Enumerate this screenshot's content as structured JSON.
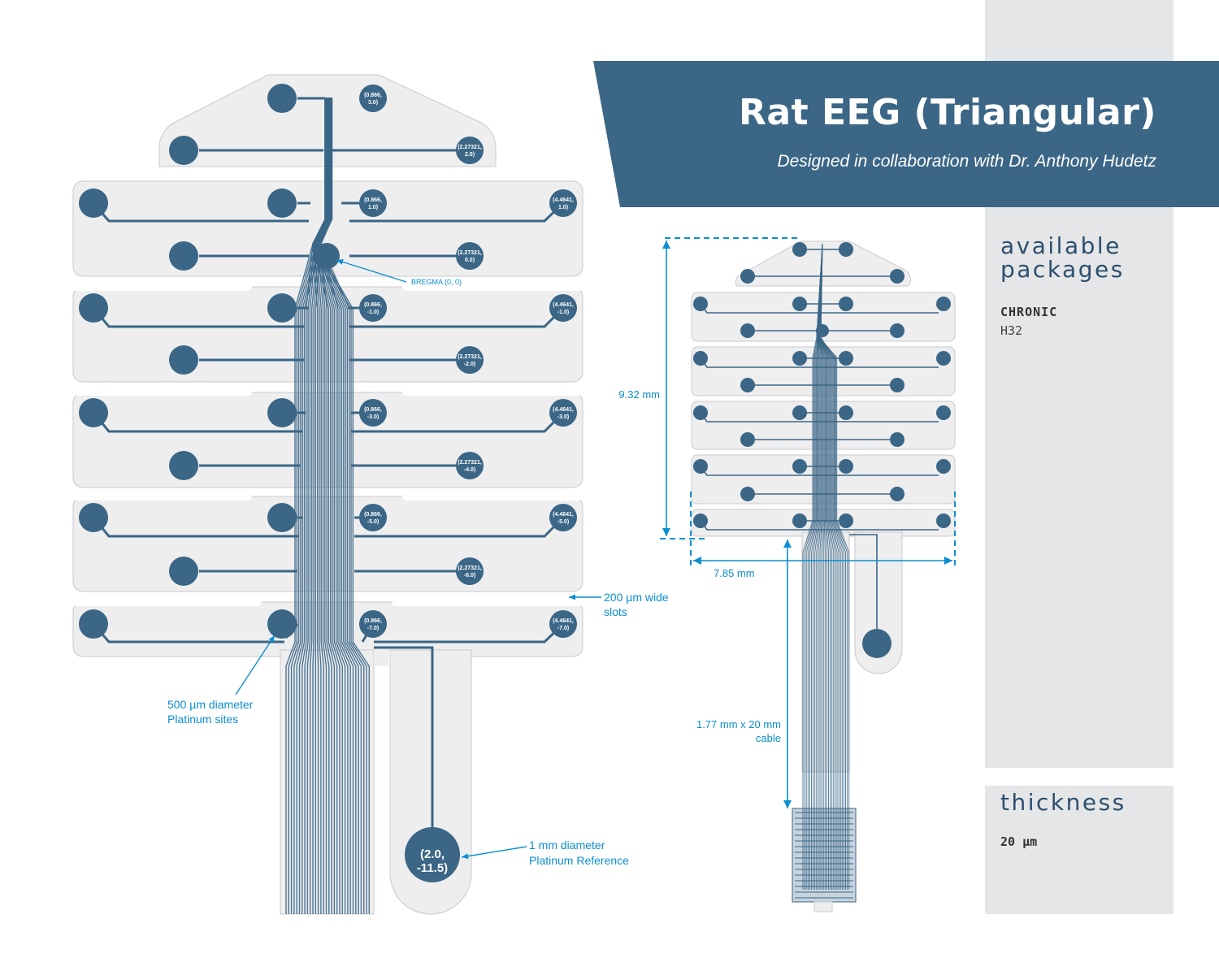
{
  "header": {
    "title": "Rat EEG (Triangular)",
    "subtitle": "Designed in collaboration with Dr. Anthony Hudetz"
  },
  "packages": {
    "heading": "available packages",
    "type": "CHRONIC",
    "model": "H32"
  },
  "thickness": {
    "heading": "thickness",
    "value": "20 µm"
  },
  "electrode_labels": [
    [
      "(0.866,",
      "3.0)"
    ],
    [
      "(2.27321,",
      "2.0)"
    ],
    [
      "(0.866,",
      "1.0)"
    ],
    [
      "(4.4641,",
      "1.0)"
    ],
    [
      "(2.27321,",
      "0.0)"
    ],
    [
      "(0.866,",
      "-1.0)"
    ],
    [
      "(4.4641,",
      "-1.0)"
    ],
    [
      "(2.27321,",
      "-2.0)"
    ],
    [
      "(0.866,",
      "-3.0)"
    ],
    [
      "(4.4641,",
      "-3.0)"
    ],
    [
      "(2.27321,",
      "-4.0)"
    ],
    [
      "(0.866,",
      "-5.0)"
    ],
    [
      "(4.4641,",
      "-5.0)"
    ],
    [
      "(2.27321,",
      "-6.0)"
    ],
    [
      "(0.866,",
      "-7.0)"
    ],
    [
      "(4.4641,",
      "-7.0)"
    ]
  ],
  "reference_label": [
    "(2.0,",
    "-11.5)"
  ],
  "annotations": {
    "bregma": "BREGMA (0, 0)",
    "slots": [
      "200 µm wide",
      "slots"
    ],
    "sites": [
      "500 µm diameter",
      "Platinum sites"
    ],
    "reference": [
      "1 mm diameter",
      "Platinum Reference"
    ],
    "height": "9.32 mm",
    "width": "7.85 mm",
    "cable": [
      "1.77 mm x 20 mm",
      "cable"
    ]
  },
  "colors": {
    "electrode": "#3b6686",
    "substrate": "#eeeeef",
    "substrate_edge": "#c9c9cc",
    "annotation": "#0a8fd0",
    "banner": "#3b6686",
    "sidebar": "#e5e6e8"
  }
}
